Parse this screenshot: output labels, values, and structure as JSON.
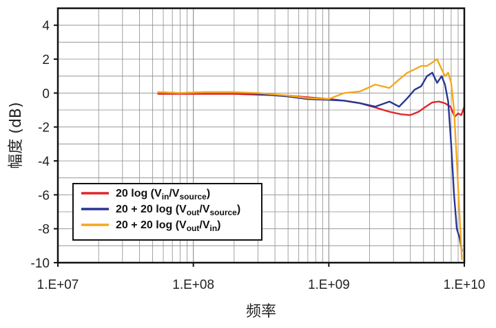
{
  "chart_data": {
    "type": "line",
    "xlabel": "频率",
    "ylabel": "幅度 (dB)",
    "xscale": "log",
    "xlim": [
      10000000,
      10000000000
    ],
    "ylim": [
      -10,
      5
    ],
    "grid": true,
    "legend_position": "bottom-left",
    "xticks": [
      {
        "value": 10000000,
        "label": "1.E+07"
      },
      {
        "value": 100000000,
        "label": "1.E+08"
      },
      {
        "value": 1000000000,
        "label": "1.E+09"
      },
      {
        "value": 10000000000,
        "label": "1.E+10"
      }
    ],
    "yticks": [
      {
        "value": 4,
        "label": "4"
      },
      {
        "value": 2,
        "label": "2"
      },
      {
        "value": 0,
        "label": "0"
      },
      {
        "value": -2,
        "label": "-2"
      },
      {
        "value": -4,
        "label": "-4"
      },
      {
        "value": -6,
        "label": "-6"
      },
      {
        "value": -8,
        "label": "-8"
      },
      {
        "value": -10,
        "label": "-10"
      }
    ],
    "series": [
      {
        "name": "20 log (Vin/Vsource)",
        "legend": {
          "prefix": "20 log (V",
          "sub1": "in",
          "mid": "/V",
          "sub2": "source",
          "suffix": ")"
        },
        "color": "#e0262b",
        "x": [
          55000000,
          80000000,
          120000000,
          200000000,
          300000000,
          500000000,
          700000000,
          1000000000,
          1300000000,
          1700000000,
          2200000000,
          2800000000,
          3400000000,
          4000000000,
          4600000000,
          5200000000,
          5800000000,
          6500000000,
          7200000000,
          7900000000,
          8500000000,
          9000000000,
          9500000000,
          10000000000
        ],
        "y": [
          -0.05,
          -0.05,
          -0.05,
          -0.05,
          -0.1,
          -0.15,
          -0.25,
          -0.35,
          -0.45,
          -0.6,
          -0.85,
          -1.1,
          -1.25,
          -1.3,
          -1.1,
          -0.8,
          -0.55,
          -0.5,
          -0.6,
          -0.8,
          -1.4,
          -1.2,
          -1.3,
          -0.8
        ]
      },
      {
        "name": "20 + 20 log (Vout/Vsource)",
        "legend": {
          "prefix": "20 + 20 log (V",
          "sub1": "out",
          "mid": "/V",
          "sub2": "source",
          "suffix": ")"
        },
        "color": "#283593",
        "x": [
          55000000,
          80000000,
          120000000,
          200000000,
          300000000,
          500000000,
          700000000,
          1000000000,
          1300000000,
          1700000000,
          2200000000,
          2800000000,
          3300000000,
          3800000000,
          4300000000,
          4800000000,
          5300000000,
          5800000000,
          6300000000,
          6800000000,
          7200000000,
          7600000000,
          8000000000,
          8400000000,
          8800000000,
          9200000000,
          9600000000
        ],
        "y": [
          0.05,
          0.0,
          0.05,
          0.05,
          -0.05,
          -0.2,
          -0.35,
          -0.4,
          -0.45,
          -0.6,
          -0.8,
          -0.5,
          -0.8,
          -0.3,
          0.2,
          0.4,
          1.0,
          1.2,
          0.6,
          1.0,
          0.5,
          -0.5,
          -3.0,
          -6.0,
          -8.0,
          -8.5,
          -9.3
        ]
      },
      {
        "name": "20 + 20 log (Vout/Vin)",
        "legend": {
          "prefix": "20 + 20 log (V",
          "sub1": "out",
          "mid": "/V",
          "sub2": "in",
          "suffix": ")"
        },
        "color": "#f4a81d",
        "x": [
          55000000,
          80000000,
          120000000,
          200000000,
          300000000,
          500000000,
          700000000,
          1000000000,
          1300000000,
          1700000000,
          2200000000,
          2800000000,
          3300000000,
          3800000000,
          4300000000,
          4800000000,
          5300000000,
          5800000000,
          6300000000,
          6800000000,
          7200000000,
          7600000000,
          8000000000,
          8400000000,
          8800000000,
          9200000000,
          9600000000
        ],
        "y": [
          0.05,
          0.0,
          0.05,
          0.05,
          0.0,
          -0.15,
          -0.3,
          -0.35,
          0.0,
          0.1,
          0.5,
          0.3,
          0.8,
          1.2,
          1.4,
          1.6,
          1.6,
          1.8,
          2.0,
          1.4,
          1.0,
          1.2,
          0.6,
          -1.0,
          -4.0,
          -7.0,
          -9.8
        ]
      }
    ]
  }
}
